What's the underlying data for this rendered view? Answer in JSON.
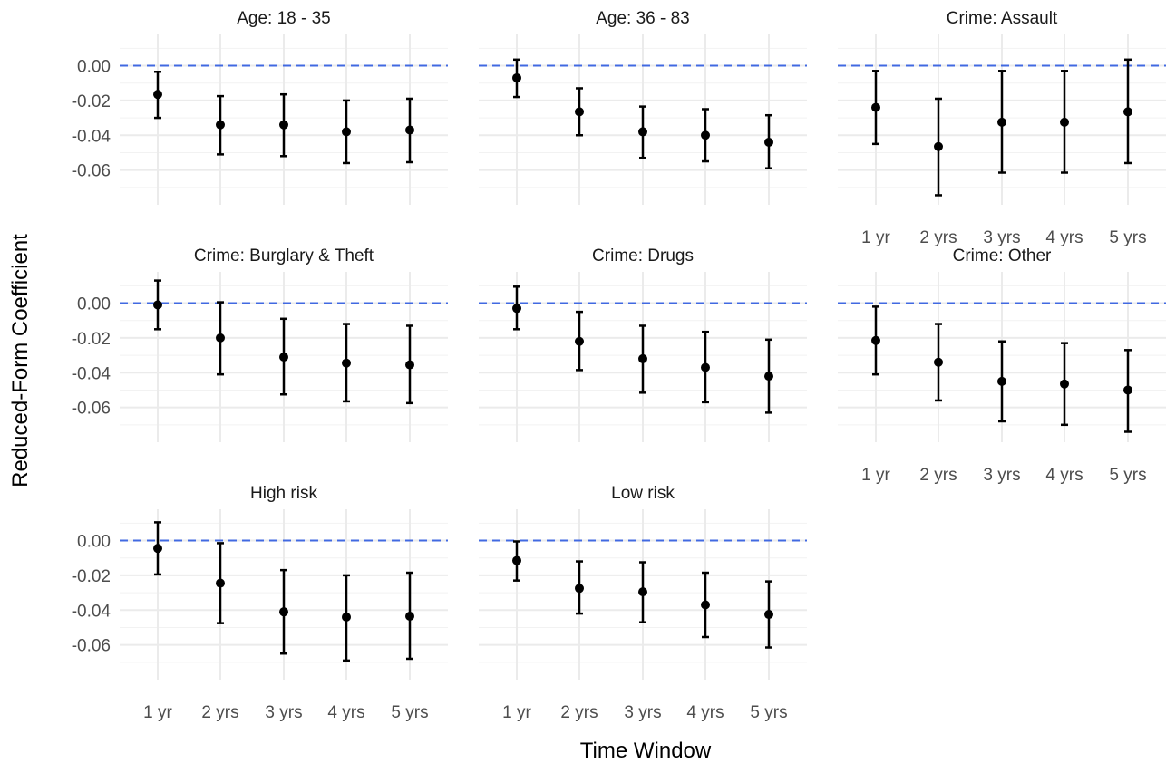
{
  "chart_data": {
    "type": "scatter",
    "subtype": "faceted point estimates with error bars",
    "xlabel": "Time Window",
    "ylabel": "Reduced-Form Coefficient",
    "categories": [
      "1 yr",
      "2 yrs",
      "3 yrs",
      "4 yrs",
      "5 yrs"
    ],
    "ylim": [
      -0.08,
      0.018
    ],
    "yticks": [
      0.0,
      -0.02,
      -0.04,
      -0.06
    ],
    "ytick_labels": [
      "0.00",
      "-0.02",
      "-0.04",
      "-0.06"
    ],
    "reference_line": {
      "y": 0,
      "style": "dashed",
      "color": "#4169e1"
    },
    "grid": true,
    "colors": {
      "points": "#000000",
      "reference": "#4169e1",
      "grid": "#ebebeb"
    },
    "panels": [
      {
        "title": "Age: 18 - 35",
        "estimates": [
          -0.0165,
          -0.034,
          -0.034,
          -0.038,
          -0.037
        ],
        "lower": [
          -0.03,
          -0.051,
          -0.052,
          -0.056,
          -0.0555
        ],
        "upper": [
          -0.0035,
          -0.0175,
          -0.0165,
          -0.02,
          -0.019
        ]
      },
      {
        "title": "Age: 36 - 83",
        "estimates": [
          -0.007,
          -0.0265,
          -0.038,
          -0.04,
          -0.044
        ],
        "lower": [
          -0.018,
          -0.04,
          -0.053,
          -0.055,
          -0.059
        ],
        "upper": [
          0.0035,
          -0.013,
          -0.0235,
          -0.025,
          -0.0285
        ]
      },
      {
        "title": "Crime: Assault",
        "estimates": [
          -0.024,
          -0.0465,
          -0.0325,
          -0.0325,
          -0.0265
        ],
        "lower": [
          -0.045,
          -0.0745,
          -0.0615,
          -0.0615,
          -0.056
        ],
        "upper": [
          -0.003,
          -0.019,
          -0.003,
          -0.003,
          0.0035
        ]
      },
      {
        "title": "Crime: Burglary & Theft",
        "estimates": [
          -0.001,
          -0.02,
          -0.031,
          -0.0345,
          -0.0355
        ],
        "lower": [
          -0.015,
          -0.041,
          -0.0525,
          -0.0565,
          -0.0575
        ],
        "upper": [
          0.013,
          0.0005,
          -0.009,
          -0.012,
          -0.013
        ]
      },
      {
        "title": "Crime: Drugs",
        "estimates": [
          -0.003,
          -0.022,
          -0.032,
          -0.037,
          -0.042
        ],
        "lower": [
          -0.015,
          -0.0385,
          -0.0515,
          -0.057,
          -0.063
        ],
        "upper": [
          0.0095,
          -0.005,
          -0.013,
          -0.0165,
          -0.021
        ]
      },
      {
        "title": "Crime: Other",
        "estimates": [
          -0.0215,
          -0.034,
          -0.045,
          -0.0465,
          -0.05
        ],
        "lower": [
          -0.041,
          -0.056,
          -0.068,
          -0.07,
          -0.074
        ],
        "upper": [
          -0.002,
          -0.012,
          -0.022,
          -0.023,
          -0.027
        ]
      },
      {
        "title": "High risk",
        "estimates": [
          -0.0045,
          -0.0245,
          -0.041,
          -0.044,
          -0.0435
        ],
        "lower": [
          -0.0195,
          -0.0475,
          -0.065,
          -0.069,
          -0.068
        ],
        "upper": [
          0.0105,
          -0.0015,
          -0.017,
          -0.02,
          -0.0185
        ]
      },
      {
        "title": "Low risk",
        "estimates": [
          -0.0115,
          -0.0275,
          -0.0295,
          -0.037,
          -0.0425
        ],
        "lower": [
          -0.023,
          -0.042,
          -0.047,
          -0.0555,
          -0.0615
        ],
        "upper": [
          -0.0005,
          -0.012,
          -0.0125,
          -0.0185,
          -0.0235
        ]
      }
    ]
  }
}
